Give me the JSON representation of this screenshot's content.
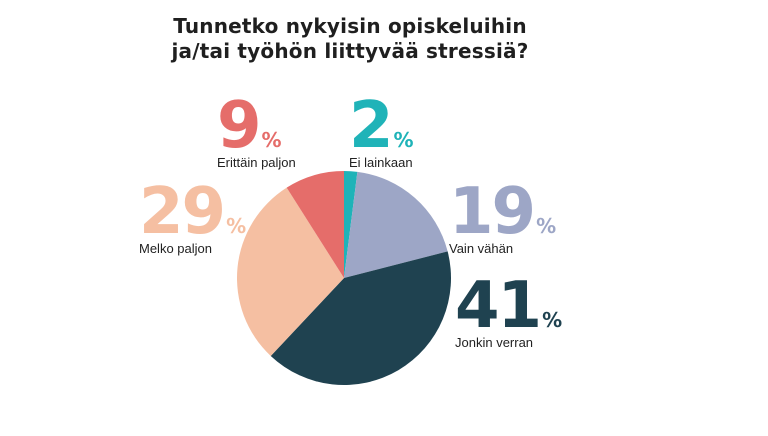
{
  "title_lines": [
    "Tunnetko nykyisin opiskeluihin",
    "ja/tai työhön liittyvää stressiä?"
  ],
  "chart_data": {
    "type": "pie",
    "title": "Tunnetko nykyisin opiskeluihin ja/tai työhön liittyvää stressiä?",
    "unit": "%",
    "slices": [
      {
        "label": "Ei lainkaan",
        "value": 2,
        "value_text": "2",
        "color": "#1fb3b8"
      },
      {
        "label": "Vain vähän",
        "value": 19,
        "value_text": "19",
        "color": "#9da6c6"
      },
      {
        "label": "Jonkin verran",
        "value": 41,
        "value_text": "41",
        "color": "#1f4250"
      },
      {
        "label": "Melko paljon",
        "value": 29,
        "value_text": "29",
        "color": "#f5bfa2"
      },
      {
        "label": "Erittäin paljon",
        "value": 9,
        "value_text": "9",
        "color": "#e56d6a"
      }
    ],
    "start_angle_deg": 0,
    "direction": "clockwise"
  }
}
